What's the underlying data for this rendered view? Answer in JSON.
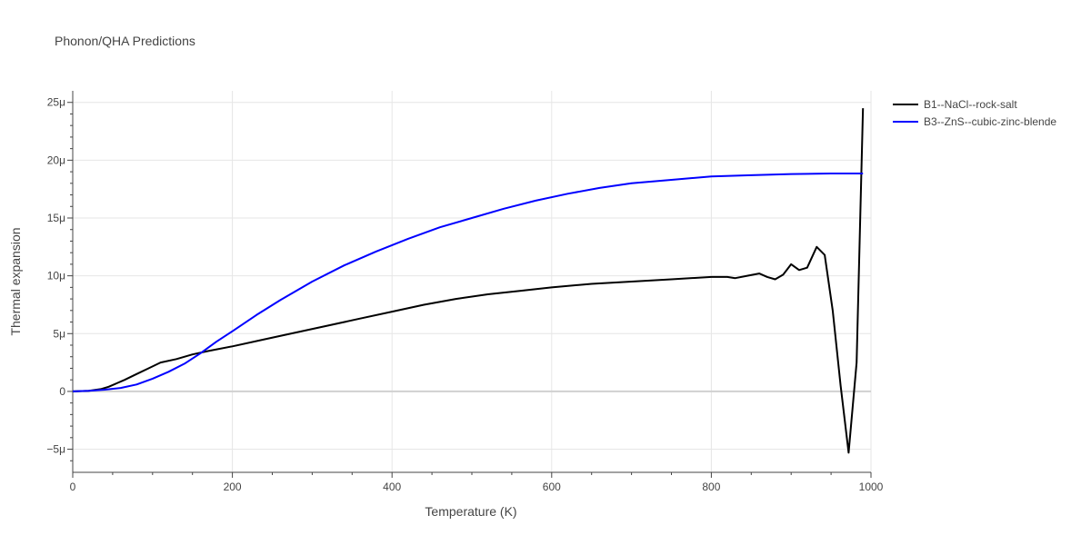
{
  "chart_data": {
    "type": "line",
    "title": "Phonon/QHA Predictions",
    "xlabel": "Temperature (K)",
    "ylabel": "Thermal expansion",
    "xlim": [
      0,
      1000
    ],
    "ylim": [
      -7,
      26
    ],
    "x_ticks": [
      0,
      200,
      400,
      600,
      800,
      1000
    ],
    "x_tick_labels": [
      "0",
      "200",
      "400",
      "600",
      "800",
      "1000"
    ],
    "y_ticks": [
      -5,
      0,
      5,
      10,
      15,
      20,
      25
    ],
    "y_tick_labels": [
      "−5μ",
      "0",
      "5μ",
      "10μ",
      "15μ",
      "20μ",
      "25μ"
    ],
    "y_unit_scale": "1e-6",
    "grid": true,
    "legend_position": "top-right, outside plot",
    "series": [
      {
        "name": "B1--NaCl--rock-salt",
        "color": "#000000",
        "x": [
          0,
          20,
          35,
          45,
          55,
          65,
          80,
          95,
          110,
          130,
          150,
          170,
          200,
          240,
          280,
          320,
          360,
          400,
          440,
          480,
          520,
          560,
          600,
          650,
          700,
          750,
          800,
          820,
          830,
          845,
          860,
          870,
          880,
          890,
          900,
          910,
          920,
          932,
          942,
          952,
          962,
          972,
          982,
          990
        ],
        "y": [
          0,
          0.05,
          0.2,
          0.4,
          0.7,
          1.0,
          1.5,
          2.0,
          2.5,
          2.8,
          3.2,
          3.5,
          3.9,
          4.5,
          5.1,
          5.7,
          6.3,
          6.9,
          7.5,
          8.0,
          8.4,
          8.7,
          9.0,
          9.3,
          9.5,
          9.7,
          9.9,
          9.9,
          9.8,
          10.0,
          10.2,
          9.9,
          9.7,
          10.1,
          11.0,
          10.5,
          10.7,
          12.5,
          11.8,
          7.0,
          0.5,
          -5.3,
          2.5,
          24.5
        ]
      },
      {
        "name": "B3--ZnS--cubic-zinc-blende",
        "color": "#0000ff",
        "x": [
          0,
          20,
          40,
          60,
          80,
          100,
          120,
          140,
          160,
          180,
          200,
          230,
          260,
          300,
          340,
          380,
          420,
          460,
          500,
          540,
          580,
          620,
          660,
          700,
          750,
          800,
          850,
          900,
          950,
          990
        ],
        "y": [
          0,
          0.05,
          0.15,
          0.3,
          0.6,
          1.1,
          1.7,
          2.4,
          3.3,
          4.3,
          5.2,
          6.6,
          7.9,
          9.5,
          10.9,
          12.1,
          13.2,
          14.2,
          15.0,
          15.8,
          16.5,
          17.1,
          17.6,
          18.0,
          18.3,
          18.6,
          18.7,
          18.8,
          18.85,
          18.85
        ]
      }
    ]
  }
}
